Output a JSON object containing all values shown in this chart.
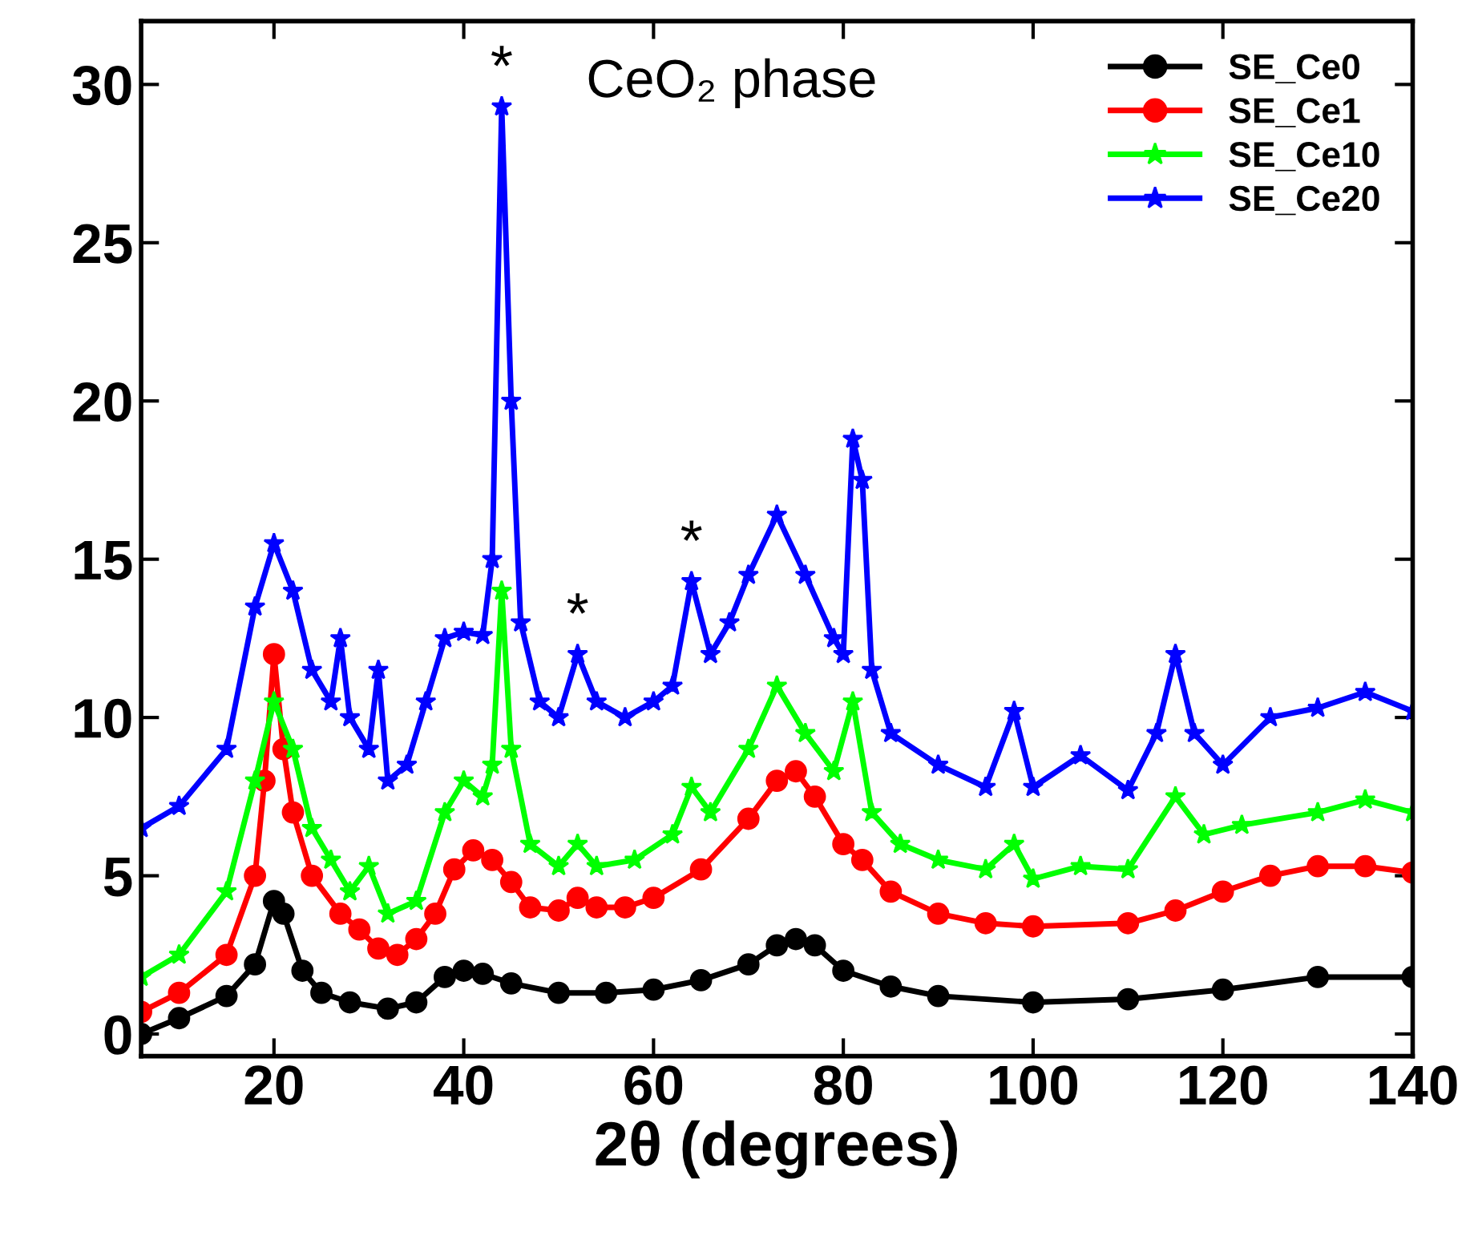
{
  "chart_data": {
    "type": "line",
    "xlabel": "2θ (degrees)",
    "xlim": [
      6,
      140
    ],
    "xticks": [
      20,
      40,
      60,
      80,
      100,
      120,
      140
    ],
    "ylim": [
      -0.7,
      32
    ],
    "yticks": [
      0,
      5,
      10,
      15,
      20,
      25,
      30
    ],
    "grid": false,
    "legend": "top right",
    "line_style": "solid",
    "annotations": [
      "CeO₂ phase",
      {
        "text": "*",
        "x": 44,
        "y": 29.3
      },
      {
        "text": "*",
        "x": 52,
        "y": 12.0
      },
      {
        "text": "*",
        "x": 64,
        "y": 14.3
      }
    ],
    "series": [
      {
        "name": "SE_Ce0",
        "color": "#000000",
        "marker": "circle",
        "x": [
          6,
          10,
          15,
          18,
          20,
          21,
          23,
          25,
          28,
          32,
          35,
          38,
          40,
          42,
          45,
          50,
          55,
          60,
          65,
          70,
          73,
          75,
          77,
          80,
          85,
          90,
          100,
          110,
          120,
          130,
          140
        ],
        "values": [
          0,
          0.5,
          1.2,
          2.2,
          4.2,
          3.8,
          2,
          1.3,
          1.0,
          0.8,
          1.0,
          1.8,
          2.0,
          1.9,
          1.6,
          1.3,
          1.3,
          1.4,
          1.7,
          2.2,
          2.8,
          3.0,
          2.8,
          2.0,
          1.5,
          1.2,
          1.0,
          1.1,
          1.4,
          1.8,
          1.8
        ]
      },
      {
        "name": "SE_Ce1",
        "color": "#ff0000",
        "marker": "circle",
        "x": [
          6,
          10,
          15,
          18,
          19,
          20,
          21,
          22,
          24,
          27,
          29,
          31,
          33,
          35,
          37,
          39,
          41,
          43,
          45,
          47,
          50,
          52,
          54,
          57,
          60,
          65,
          70,
          73,
          75,
          77,
          80,
          82,
          85,
          90,
          95,
          100,
          110,
          115,
          120,
          125,
          130,
          135,
          140
        ],
        "values": [
          0.7,
          1.3,
          2.5,
          5,
          8,
          12,
          9,
          7,
          5,
          3.8,
          3.3,
          2.7,
          2.5,
          3.0,
          3.8,
          5.2,
          5.8,
          5.5,
          4.8,
          4.0,
          3.9,
          4.3,
          4.0,
          4.0,
          4.3,
          5.2,
          6.8,
          8.0,
          8.3,
          7.5,
          6.0,
          5.5,
          4.5,
          3.8,
          3.5,
          3.4,
          3.5,
          3.9,
          4.5,
          5.0,
          5.3,
          5.3,
          5.1
        ]
      },
      {
        "name": "SE_Ce10",
        "color": "#00ff00",
        "marker": "star",
        "x": [
          6,
          10,
          15,
          18,
          20,
          22,
          24,
          26,
          28,
          30,
          32,
          35,
          38,
          40,
          42,
          43,
          44,
          45,
          47,
          50,
          52,
          54,
          58,
          62,
          64,
          66,
          70,
          73,
          76,
          79,
          81,
          83,
          86,
          90,
          95,
          98,
          100,
          105,
          110,
          115,
          118,
          122,
          130,
          135,
          140
        ],
        "values": [
          1.8,
          2.5,
          4.5,
          8,
          10.5,
          9,
          6.5,
          5.5,
          4.5,
          5.3,
          3.8,
          4.2,
          7,
          8,
          7.5,
          8.5,
          14,
          9,
          6.0,
          5.3,
          6.0,
          5.3,
          5.5,
          6.3,
          7.8,
          7.0,
          9.0,
          11.0,
          9.5,
          8.3,
          10.5,
          7.0,
          6.0,
          5.5,
          5.2,
          6.0,
          4.9,
          5.3,
          5.2,
          7.5,
          6.3,
          6.6,
          7.0,
          7.4,
          7.0
        ]
      },
      {
        "name": "SE_Ce20",
        "color": "#0000ff",
        "marker": "star",
        "x": [
          6,
          10,
          15,
          18,
          20,
          22,
          24,
          26,
          27,
          28,
          30,
          31,
          32,
          34,
          36,
          38,
          40,
          42,
          43,
          44,
          45,
          46,
          48,
          50,
          52,
          54,
          57,
          60,
          62,
          64,
          66,
          68,
          70,
          73,
          76,
          79,
          80,
          81,
          82,
          83,
          85,
          90,
          95,
          98,
          100,
          105,
          110,
          113,
          115,
          117,
          120,
          125,
          130,
          135,
          140
        ],
        "values": [
          6.5,
          7.2,
          9,
          13.5,
          15.5,
          14,
          11.5,
          10.5,
          12.5,
          10,
          9,
          11.5,
          8,
          8.5,
          10.5,
          12.5,
          12.7,
          12.6,
          15,
          29.3,
          20,
          13,
          10.5,
          10,
          12.0,
          10.5,
          10,
          10.5,
          11,
          14.3,
          12,
          13,
          14.5,
          16.4,
          14.5,
          12.5,
          12,
          18.8,
          17.5,
          11.5,
          9.5,
          8.5,
          7.8,
          10.2,
          7.8,
          8.8,
          7.7,
          9.5,
          12.0,
          9.5,
          8.5,
          10,
          10.3,
          10.8,
          10.2
        ]
      }
    ]
  }
}
